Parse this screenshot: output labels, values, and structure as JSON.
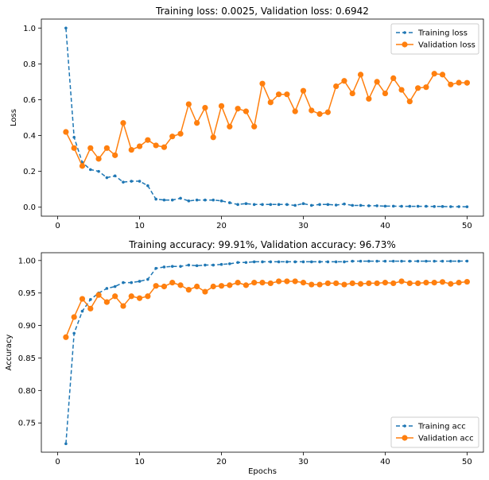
{
  "chart_data": [
    {
      "type": "line",
      "title": "Training loss: 0.0025, Validation loss: 0.6942",
      "xlabel": "",
      "ylabel": "Loss",
      "xlim": [
        -2,
        52
      ],
      "ylim": [
        -0.05,
        1.05
      ],
      "xticks": [
        0,
        10,
        20,
        30,
        40,
        50
      ],
      "yticks": [
        0.0,
        0.2,
        0.4,
        0.6,
        0.8,
        1.0
      ],
      "ytick_labels": [
        "0.0",
        "0.2",
        "0.4",
        "0.6",
        "0.8",
        "1.0"
      ],
      "legend_position": "top-right",
      "x": [
        1,
        2,
        3,
        4,
        5,
        6,
        7,
        8,
        9,
        10,
        11,
        12,
        13,
        14,
        15,
        16,
        17,
        18,
        19,
        20,
        21,
        22,
        23,
        24,
        25,
        26,
        27,
        28,
        29,
        30,
        31,
        32,
        33,
        34,
        35,
        36,
        37,
        38,
        39,
        40,
        41,
        42,
        43,
        44,
        45,
        46,
        47,
        48,
        49,
        50
      ],
      "series": [
        {
          "name": "Training loss",
          "style": "dashed-dot-markers",
          "color": "#1f77b4",
          "values": [
            1.0,
            0.39,
            0.25,
            0.21,
            0.2,
            0.165,
            0.175,
            0.14,
            0.145,
            0.145,
            0.12,
            0.045,
            0.04,
            0.04,
            0.05,
            0.035,
            0.04,
            0.04,
            0.04,
            0.035,
            0.025,
            0.015,
            0.02,
            0.015,
            0.015,
            0.015,
            0.015,
            0.015,
            0.01,
            0.02,
            0.01,
            0.015,
            0.015,
            0.012,
            0.018,
            0.01,
            0.01,
            0.008,
            0.008,
            0.006,
            0.006,
            0.005,
            0.005,
            0.005,
            0.005,
            0.004,
            0.004,
            0.003,
            0.003,
            0.0025
          ]
        },
        {
          "name": "Validation loss",
          "style": "solid-circle-markers",
          "color": "#ff7f0e",
          "values": [
            0.42,
            0.33,
            0.23,
            0.33,
            0.27,
            0.33,
            0.29,
            0.47,
            0.32,
            0.34,
            0.375,
            0.345,
            0.335,
            0.395,
            0.41,
            0.575,
            0.47,
            0.555,
            0.39,
            0.565,
            0.45,
            0.55,
            0.535,
            0.45,
            0.69,
            0.585,
            0.63,
            0.63,
            0.535,
            0.65,
            0.54,
            0.52,
            0.53,
            0.675,
            0.705,
            0.635,
            0.74,
            0.605,
            0.7,
            0.635,
            0.72,
            0.655,
            0.59,
            0.665,
            0.67,
            0.745,
            0.74,
            0.685,
            0.695,
            0.6942
          ]
        }
      ]
    },
    {
      "type": "line",
      "title": "Training accuracy: 99.91%, Validation accuracy: 96.73%",
      "xlabel": "Epochs",
      "ylabel": "Accuracy",
      "xlim": [
        -2,
        52
      ],
      "ylim": [
        0.705,
        1.012
      ],
      "xticks": [
        0,
        10,
        20,
        30,
        40,
        50
      ],
      "yticks": [
        0.75,
        0.8,
        0.85,
        0.9,
        0.95,
        1.0
      ],
      "ytick_labels": [
        "0.75",
        "0.80",
        "0.85",
        "0.90",
        "0.95",
        "1.00"
      ],
      "legend_position": "bottom-right",
      "x": [
        1,
        2,
        3,
        4,
        5,
        6,
        7,
        8,
        9,
        10,
        11,
        12,
        13,
        14,
        15,
        16,
        17,
        18,
        19,
        20,
        21,
        22,
        23,
        24,
        25,
        26,
        27,
        28,
        29,
        30,
        31,
        32,
        33,
        34,
        35,
        36,
        37,
        38,
        39,
        40,
        41,
        42,
        43,
        44,
        45,
        46,
        47,
        48,
        49,
        50
      ],
      "series": [
        {
          "name": "Training acc",
          "style": "dashed-dot-markers",
          "color": "#1f77b4",
          "values": [
            0.718,
            0.888,
            0.922,
            0.94,
            0.95,
            0.957,
            0.96,
            0.966,
            0.966,
            0.968,
            0.971,
            0.988,
            0.99,
            0.991,
            0.991,
            0.993,
            0.992,
            0.993,
            0.993,
            0.994,
            0.995,
            0.997,
            0.997,
            0.998,
            0.998,
            0.998,
            0.998,
            0.998,
            0.998,
            0.998,
            0.998,
            0.998,
            0.998,
            0.998,
            0.998,
            0.999,
            0.999,
            0.999,
            0.999,
            0.999,
            0.999,
            0.999,
            0.999,
            0.999,
            0.999,
            0.999,
            0.999,
            0.999,
            0.999,
            0.9991
          ]
        },
        {
          "name": "Validation acc",
          "style": "solid-circle-markers",
          "color": "#ff7f0e",
          "values": [
            0.882,
            0.913,
            0.941,
            0.926,
            0.947,
            0.936,
            0.945,
            0.93,
            0.945,
            0.942,
            0.945,
            0.961,
            0.96,
            0.966,
            0.962,
            0.955,
            0.96,
            0.952,
            0.96,
            0.961,
            0.962,
            0.966,
            0.962,
            0.966,
            0.966,
            0.965,
            0.968,
            0.968,
            0.968,
            0.966,
            0.963,
            0.963,
            0.965,
            0.965,
            0.963,
            0.965,
            0.964,
            0.965,
            0.965,
            0.966,
            0.965,
            0.968,
            0.965,
            0.965,
            0.966,
            0.966,
            0.967,
            0.964,
            0.966,
            0.9673
          ]
        }
      ]
    }
  ]
}
